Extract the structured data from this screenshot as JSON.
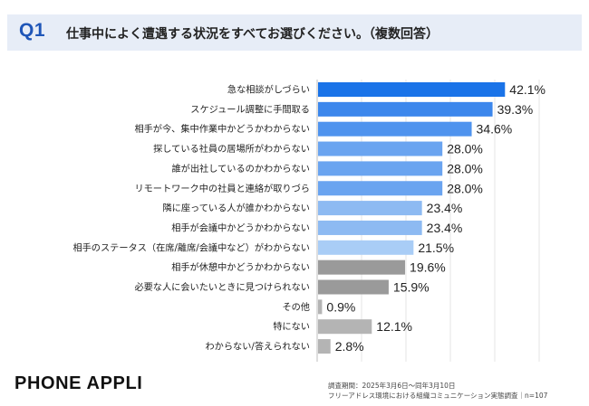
{
  "header": {
    "q_label": "Q1",
    "title": "仕事中によく遭遇する状況をすべてお選びください。（複数回答）"
  },
  "chart_data": {
    "type": "bar",
    "orientation": "horizontal",
    "categories": [
      "急な相談がしづらい",
      "スケジュール調整に手間取る",
      "相手が今、集中作業中かどうかわからない",
      "探している社員の居場所がわからない",
      "誰が出社しているのかわからない",
      "リモートワーク中の社員と連絡が取りづら",
      "隣に座っている人が誰かわからない",
      "相手が会議中かどうかわからない",
      "相手のステータス（在席/離席/会議中など）がわからない",
      "相手が休憩中かどうかわからない",
      "必要な人に会いたいときに見つけられない",
      "その他",
      "特にない",
      "わからない/答えられない"
    ],
    "values": [
      42.1,
      39.3,
      34.6,
      28.0,
      28.0,
      28.0,
      23.4,
      23.4,
      21.5,
      19.6,
      15.9,
      0.9,
      12.1,
      2.8
    ],
    "value_labels": [
      "42.1%",
      "39.3%",
      "34.6%",
      "28.0%",
      "28.0%",
      "28.0%",
      "23.4%",
      "23.4%",
      "21.5%",
      "19.6%",
      "15.9%",
      "0.9%",
      "12.1%",
      "2.8%"
    ],
    "bar_colors": [
      "#1a73e8",
      "#3c87ec",
      "#4f93ee",
      "#6aa4f0",
      "#6aa4f0",
      "#6aa4f0",
      "#8dbaf2",
      "#8dbaf2",
      "#a9cdf6",
      "#9a9a9a",
      "#9a9a9a",
      "#b4b4b4",
      "#b4b4b4",
      "#b4b4b4"
    ],
    "grid": true,
    "xlim": [
      0,
      50
    ],
    "title": "",
    "xlabel": "",
    "ylabel": ""
  },
  "footer": {
    "brand": "PHONE APPLI",
    "note_period": "調査期間：2025年3月6日～同年3月10日",
    "note_survey": "フリーアドレス環境における組織コミュニケーション実態調査｜n=107"
  }
}
